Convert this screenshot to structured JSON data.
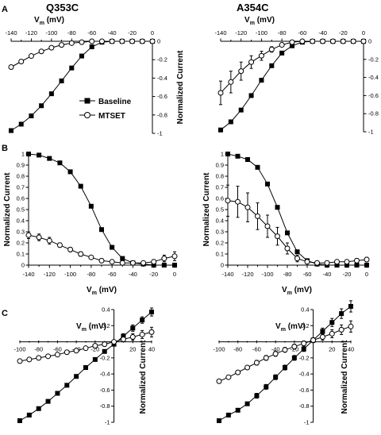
{
  "figure": {
    "panel_labels": [
      "A",
      "B",
      "C"
    ],
    "column_titles": [
      "Q353C",
      "A354C"
    ],
    "legend": {
      "baseline": "Baseline",
      "mtset": "MTSET"
    },
    "vm_main": "V",
    "vm_sub": "m",
    "vm_unit": " (mV)",
    "y_label": "Normalized Current",
    "colors": {
      "ink": "#000000",
      "marker_fill_baseline": "#000000",
      "marker_fill_mtset": "#ffffff"
    }
  },
  "chart_data": [
    {
      "id": "A-Q353C",
      "type": "line",
      "xlabel": "Vm (mV)",
      "ylabel": "Normalized Current",
      "xlim": [
        -140,
        0
      ],
      "ylim": [
        -1,
        0
      ],
      "xticks": [
        -140,
        -120,
        -100,
        -80,
        -60,
        -40,
        -20,
        0
      ],
      "yticks": [
        0,
        -0.2,
        -0.4,
        -0.6,
        -0.8,
        -1
      ],
      "ytick_labels": [
        "0",
        "-0.2",
        "-0.4",
        "-0.6",
        "-0.8",
        "-1"
      ],
      "series": [
        {
          "name": "Baseline",
          "marker": "square-filled",
          "x": [
            -140,
            -130,
            -120,
            -110,
            -100,
            -90,
            -80,
            -70,
            -60,
            -50,
            -40,
            -30,
            -20,
            -10,
            0
          ],
          "y": [
            -0.97,
            -0.9,
            -0.81,
            -0.7,
            -0.57,
            -0.43,
            -0.29,
            -0.16,
            -0.06,
            -0.01,
            0,
            0,
            0,
            0,
            0
          ]
        },
        {
          "name": "MTSET",
          "marker": "circle-open",
          "x": [
            -140,
            -130,
            -120,
            -110,
            -100,
            -90,
            -80,
            -70,
            -60,
            -50,
            -40,
            -30,
            -20,
            -10,
            0
          ],
          "y": [
            -0.28,
            -0.22,
            -0.16,
            -0.11,
            -0.07,
            -0.04,
            -0.02,
            -0.01,
            0,
            0,
            0,
            0,
            0,
            0,
            0
          ]
        }
      ]
    },
    {
      "id": "A-A354C",
      "type": "line",
      "xlabel": "Vm (mV)",
      "ylabel": "Normalized Current",
      "xlim": [
        -140,
        0
      ],
      "ylim": [
        -1,
        0
      ],
      "xticks": [
        -140,
        -120,
        -100,
        -80,
        -60,
        -40,
        -20,
        0
      ],
      "yticks": [
        0,
        -0.2,
        -0.4,
        -0.6,
        -0.8,
        -1
      ],
      "ytick_labels": [
        "0",
        "-0.2",
        "-0.4",
        "-0.6",
        "-0.8",
        "-1"
      ],
      "series": [
        {
          "name": "Baseline",
          "marker": "square-filled",
          "x": [
            -140,
            -130,
            -120,
            -110,
            -100,
            -90,
            -80,
            -70,
            -60,
            -50,
            -40,
            -30,
            -20,
            -10,
            0
          ],
          "y": [
            -0.98,
            -0.89,
            -0.76,
            -0.6,
            -0.43,
            -0.27,
            -0.13,
            -0.05,
            -0.01,
            0,
            0,
            0,
            0,
            0,
            0
          ]
        },
        {
          "name": "MTSET",
          "marker": "circle-open",
          "x": [
            -140,
            -130,
            -120,
            -110,
            -100,
            -90,
            -80,
            -70,
            -60,
            -50,
            -40,
            -30,
            -20,
            -10,
            0
          ],
          "y": [
            -0.57,
            -0.45,
            -0.33,
            -0.23,
            -0.16,
            -0.09,
            -0.04,
            -0.01,
            0,
            0,
            0,
            0,
            0,
            0,
            0
          ],
          "err": [
            0.13,
            0.12,
            0.1,
            0.07,
            0.05,
            0.03,
            0.02,
            0.01,
            0,
            0,
            0,
            0,
            0,
            0,
            0
          ]
        }
      ]
    },
    {
      "id": "B-Q353C",
      "type": "line",
      "xlabel": "Vm (mV)",
      "ylabel": "Normalized Current",
      "xlim": [
        -140,
        0
      ],
      "ylim": [
        0,
        1
      ],
      "xticks": [
        -140,
        -120,
        -100,
        -80,
        -60,
        -40,
        -20,
        0
      ],
      "yticks": [
        0,
        0.1,
        0.2,
        0.3,
        0.4,
        0.5,
        0.6,
        0.7,
        0.8,
        0.9,
        1
      ],
      "ytick_labels": [
        "0",
        "0.1",
        "0.2",
        "0.3",
        "0.4",
        "0.5",
        "0.6",
        "0.7",
        "0.8",
        "0.9",
        "1"
      ],
      "series": [
        {
          "name": "Baseline",
          "marker": "square-filled",
          "x": [
            -140,
            -130,
            -120,
            -110,
            -100,
            -90,
            -80,
            -70,
            -60,
            -50,
            -40,
            -30,
            -20,
            -10,
            0
          ],
          "y": [
            1.0,
            0.99,
            0.96,
            0.92,
            0.84,
            0.71,
            0.53,
            0.32,
            0.16,
            0.06,
            0.02,
            0.01,
            0.0,
            0.0,
            0.0
          ]
        },
        {
          "name": "MTSET",
          "marker": "circle-open",
          "x": [
            -140,
            -130,
            -120,
            -110,
            -100,
            -90,
            -80,
            -70,
            -60,
            -50,
            -40,
            -30,
            -20,
            -10,
            0
          ],
          "y": [
            0.27,
            0.25,
            0.22,
            0.18,
            0.14,
            0.1,
            0.07,
            0.04,
            0.03,
            0.02,
            0.02,
            0.02,
            0.03,
            0.06,
            0.08
          ],
          "err": [
            0.03,
            0.03,
            0.03,
            0.02,
            0.02,
            0.02,
            0.01,
            0.01,
            0.01,
            0.01,
            0.01,
            0.01,
            0.02,
            0.03,
            0.04
          ]
        }
      ]
    },
    {
      "id": "B-A354C",
      "type": "line",
      "xlabel": "Vm (mV)",
      "ylabel": "Normalized Current",
      "xlim": [
        -140,
        0
      ],
      "ylim": [
        0,
        1
      ],
      "xticks": [
        -140,
        -120,
        -100,
        -80,
        -60,
        -40,
        -20,
        0
      ],
      "yticks": [
        0,
        0.1,
        0.2,
        0.3,
        0.4,
        0.5,
        0.6,
        0.7,
        0.8,
        0.9,
        1
      ],
      "ytick_labels": [
        "0",
        "0.1",
        "0.2",
        "0.3",
        "0.4",
        "0.5",
        "0.6",
        "0.7",
        "0.8",
        "0.9",
        "1"
      ],
      "series": [
        {
          "name": "Baseline",
          "marker": "square-filled",
          "x": [
            -140,
            -130,
            -120,
            -110,
            -100,
            -90,
            -80,
            -70,
            -60,
            -50,
            -40,
            -30,
            -20,
            -10,
            0
          ],
          "y": [
            1.0,
            0.98,
            0.95,
            0.88,
            0.73,
            0.52,
            0.29,
            0.12,
            0.04,
            0.01,
            0.0,
            0.0,
            0.0,
            0.0,
            0.0
          ]
        },
        {
          "name": "MTSET",
          "marker": "circle-open",
          "x": [
            -140,
            -130,
            -120,
            -110,
            -100,
            -90,
            -80,
            -70,
            -60,
            -50,
            -40,
            -30,
            -20,
            -10,
            0
          ],
          "y": [
            0.58,
            0.57,
            0.52,
            0.44,
            0.35,
            0.26,
            0.15,
            0.06,
            0.03,
            0.02,
            0.02,
            0.03,
            0.03,
            0.04,
            0.05
          ],
          "err": [
            0.14,
            0.14,
            0.13,
            0.12,
            0.1,
            0.08,
            0.05,
            0.03,
            0.02,
            0.01,
            0.01,
            0.01,
            0.01,
            0.02,
            0.02
          ]
        }
      ]
    },
    {
      "id": "C-Q353C",
      "type": "line",
      "xlabel": "Vm (mV)",
      "ylabel": "Normalized Current",
      "xlim": [
        -100,
        40
      ],
      "ylim": [
        -1,
        0.4
      ],
      "xticks": [
        -100,
        -80,
        -60,
        -40,
        -20,
        20,
        40
      ],
      "yticks": [
        0.4,
        0.2,
        0,
        -0.2,
        -0.4,
        -0.6,
        -0.8,
        -1
      ],
      "ytick_labels": [
        "0.4",
        "0.2",
        "0",
        "-0.2",
        "-0.4",
        "-0.6",
        "-0.8",
        "-1"
      ],
      "series": [
        {
          "name": "Baseline",
          "marker": "square-filled",
          "x": [
            -100,
            -90,
            -80,
            -70,
            -60,
            -50,
            -40,
            -30,
            -20,
            -10,
            0,
            10,
            20,
            30,
            40
          ],
          "y": [
            -0.98,
            -0.91,
            -0.83,
            -0.74,
            -0.64,
            -0.54,
            -0.43,
            -0.32,
            -0.22,
            -0.12,
            -0.03,
            0.07,
            0.17,
            0.27,
            0.37
          ],
          "err": [
            0,
            0.02,
            0.02,
            0.02,
            0.02,
            0.02,
            0.02,
            0.02,
            0.02,
            0.02,
            0.02,
            0.03,
            0.04,
            0.04,
            0.05
          ]
        },
        {
          "name": "MTSET",
          "marker": "circle-open",
          "x": [
            -100,
            -90,
            -80,
            -70,
            -60,
            -50,
            -40,
            -30,
            -20,
            -10,
            0,
            10,
            20,
            30,
            40
          ],
          "y": [
            -0.24,
            -0.22,
            -0.2,
            -0.18,
            -0.16,
            -0.13,
            -0.11,
            -0.08,
            -0.05,
            -0.03,
            0.0,
            0.03,
            0.06,
            0.09,
            0.12
          ],
          "err": [
            0.01,
            0.01,
            0.01,
            0.01,
            0.01,
            0.01,
            0.01,
            0.01,
            0.01,
            0.01,
            0.02,
            0.03,
            0.04,
            0.05,
            0.06
          ]
        }
      ]
    },
    {
      "id": "C-A354C",
      "type": "line",
      "xlabel": "Vm (mV)",
      "ylabel": "Normalized Current",
      "xlim": [
        -100,
        40
      ],
      "ylim": [
        -1,
        0.4
      ],
      "xticks": [
        -100,
        -80,
        -60,
        -40,
        -20,
        20,
        40
      ],
      "yticks": [
        0.4,
        0.2,
        0,
        -0.2,
        -0.4,
        -0.6,
        -0.8,
        -1
      ],
      "ytick_labels": [
        "0.4",
        "0.2",
        "0",
        "-0.2",
        "-0.4",
        "-0.6",
        "-0.8",
        "-1"
      ],
      "series": [
        {
          "name": "Baseline",
          "marker": "square-filled",
          "x": [
            -100,
            -90,
            -80,
            -70,
            -60,
            -50,
            -40,
            -30,
            -20,
            -10,
            0,
            10,
            20,
            30,
            40
          ],
          "y": [
            -0.98,
            -0.91,
            -0.85,
            -0.77,
            -0.67,
            -0.56,
            -0.44,
            -0.32,
            -0.2,
            -0.09,
            0.02,
            0.13,
            0.24,
            0.35,
            0.44
          ],
          "err": [
            0,
            0.02,
            0.02,
            0.02,
            0.03,
            0.03,
            0.03,
            0.03,
            0.03,
            0.03,
            0.03,
            0.04,
            0.05,
            0.06,
            0.07
          ]
        },
        {
          "name": "MTSET",
          "marker": "circle-open",
          "x": [
            -100,
            -90,
            -80,
            -70,
            -60,
            -50,
            -40,
            -30,
            -20,
            -10,
            0,
            10,
            20,
            30,
            40
          ],
          "y": [
            -0.49,
            -0.44,
            -0.38,
            -0.32,
            -0.26,
            -0.2,
            -0.15,
            -0.1,
            -0.06,
            -0.02,
            0.02,
            0.06,
            0.1,
            0.15,
            0.19
          ],
          "err": [
            0.02,
            0.02,
            0.02,
            0.02,
            0.03,
            0.03,
            0.03,
            0.03,
            0.03,
            0.03,
            0.03,
            0.04,
            0.05,
            0.06,
            0.07
          ]
        }
      ]
    }
  ]
}
